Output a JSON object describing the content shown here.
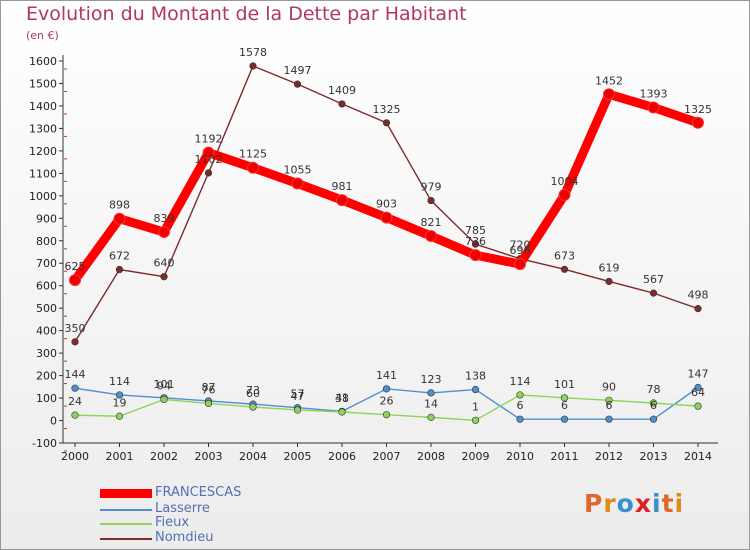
{
  "title": "Evolution du Montant de la Dette par Habitant",
  "unit": "(en €)",
  "logo": {
    "text": "Proxiti",
    "colors": [
      "#e0662a",
      "#e08a1a",
      "#3a8fd0",
      "#e02020",
      "#3a8fd0",
      "#e0662a",
      "#e08a1a"
    ]
  },
  "chart_data": {
    "type": "line",
    "x": [
      2000,
      2001,
      2002,
      2003,
      2004,
      2005,
      2006,
      2007,
      2008,
      2009,
      2010,
      2011,
      2012,
      2013,
      2014
    ],
    "ylim": [
      -100,
      1600
    ],
    "yticks": [
      -100,
      0,
      100,
      200,
      300,
      400,
      500,
      600,
      700,
      800,
      900,
      1000,
      1100,
      1200,
      1300,
      1400,
      1500,
      1600
    ],
    "grid": false,
    "legend_position": "bottom-left",
    "series": [
      {
        "name": "FRANCESCAS",
        "color": "#ff0000",
        "values": [
          625,
          898,
          839,
          1192,
          1125,
          1055,
          981,
          903,
          821,
          736,
          696,
          1004,
          1452,
          1393,
          1325
        ]
      },
      {
        "name": "Lasserre",
        "color": "#4f8fd0",
        "values": [
          144,
          114,
          101,
          87,
          73,
          57,
          41,
          141,
          123,
          138,
          6,
          6,
          6,
          6,
          147
        ]
      },
      {
        "name": "Fieux",
        "color": "#8fd45a",
        "values": [
          24,
          19,
          94,
          76,
          60,
          47,
          38,
          26,
          14,
          1,
          114,
          101,
          90,
          78,
          64
        ]
      },
      {
        "name": "Nomdieu",
        "color": "#7b2b2b",
        "values": [
          350,
          672,
          640,
          1102,
          1578,
          1497,
          1409,
          1325,
          979,
          785,
          720,
          673,
          619,
          567,
          498
        ]
      }
    ]
  }
}
